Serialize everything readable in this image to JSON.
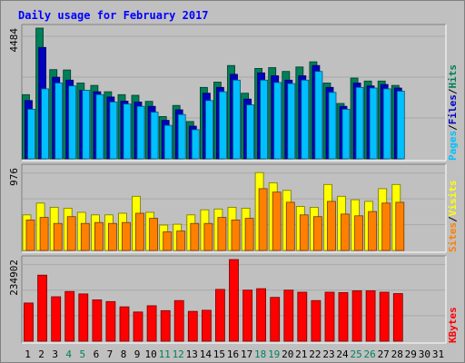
{
  "chart_data": {
    "type": "bar",
    "title": "Daily usage for February 2017",
    "days": [
      "1",
      "2",
      "3",
      "4",
      "5",
      "6",
      "7",
      "8",
      "9",
      "10",
      "11",
      "12",
      "13",
      "14",
      "15",
      "16",
      "17",
      "18",
      "19",
      "20",
      "21",
      "22",
      "23",
      "24",
      "25",
      "26",
      "27",
      "28",
      "29",
      "30",
      "31"
    ],
    "weekend_days": [
      "4",
      "5",
      "11",
      "12",
      "18",
      "19",
      "25",
      "26"
    ],
    "panels": [
      {
        "id": "hits",
        "ymax_label": "4484",
        "ymax": 4484,
        "side_labels": [
          "Pages",
          "/",
          "Files",
          "/",
          "Hits"
        ],
        "side_colors": [
          "#00c0ff",
          "#000000",
          "#0000c0",
          "#000000",
          "#007f58"
        ],
        "series": [
          {
            "name": "Hits",
            "color": "#007f58",
            "values": [
              2200,
              4484,
              3060,
              3050,
              2600,
              2520,
              2300,
              2200,
              2180,
              1970,
              1450,
              1830,
              1280,
              2450,
              2630,
              3200,
              2250,
              3100,
              3130,
              3000,
              3150,
              3330,
              2600,
              1900,
              2770,
              2670,
              2670,
              2520,
              0,
              0,
              0
            ]
          },
          {
            "name": "Files",
            "color": "#0000c0",
            "values": [
              2000,
              3820,
              2800,
              2700,
              2350,
              2300,
              2120,
              1980,
              1950,
              1800,
              1320,
              1680,
              1120,
              2250,
              2450,
              2900,
              2050,
              2950,
              2850,
              2700,
              2850,
              3200,
              2450,
              1800,
              2600,
              2500,
              2550,
              2430,
              0,
              0,
              0
            ]
          },
          {
            "name": "Pages",
            "color": "#00c0ff",
            "values": [
              1700,
              2400,
              2600,
              2500,
              2350,
              2200,
              1950,
              1880,
              1800,
              1600,
              1150,
              1520,
              1000,
              2000,
              2300,
              2700,
              1850,
              2700,
              2620,
              2580,
              2700,
              3000,
              2280,
              1700,
              2450,
              2430,
              2400,
              2320,
              0,
              0,
              0
            ]
          }
        ]
      },
      {
        "id": "sites",
        "ymax_label": "976",
        "ymax": 976,
        "side_labels": [
          "Sites",
          "/",
          "Visits"
        ],
        "side_colors": [
          "#ff8000",
          "#000000",
          "#ffff00"
        ],
        "series": [
          {
            "name": "Visits",
            "color": "#ffff00",
            "values": [
              420,
              560,
              510,
              500,
              450,
              420,
              420,
              440,
              640,
              450,
              300,
              310,
              420,
              480,
              490,
              510,
              500,
              920,
              800,
              710,
              520,
              510,
              780,
              640,
              600,
              580,
              730,
              780,
              0,
              0,
              0
            ]
          },
          {
            "name": "Sites",
            "color": "#ff8000",
            "values": [
              360,
              390,
              320,
              400,
              320,
              330,
              320,
              330,
              440,
              380,
              220,
              230,
              320,
              320,
              390,
              360,
              380,
              730,
              690,
              570,
              420,
              400,
              580,
              430,
              410,
              460,
              560,
              570,
              0,
              0,
              0
            ]
          }
        ]
      },
      {
        "id": "kbytes",
        "ymax_label": "234902",
        "ymax": 234902,
        "side_labels": [
          "KBytes"
        ],
        "side_colors": [
          "#ff0000"
        ],
        "series": [
          {
            "name": "KBytes",
            "color": "#ff0000",
            "values": [
              110000,
              190000,
              128000,
              143000,
              136000,
              119000,
              114000,
              99000,
              84000,
              102000,
              88000,
              117000,
              86000,
              89000,
              149000,
              234902,
              147000,
              151000,
              126000,
              147000,
              141000,
              117000,
              141000,
              140000,
              145000,
              145000,
              141000,
              137000,
              0,
              0,
              0
            ]
          }
        ]
      }
    ]
  }
}
